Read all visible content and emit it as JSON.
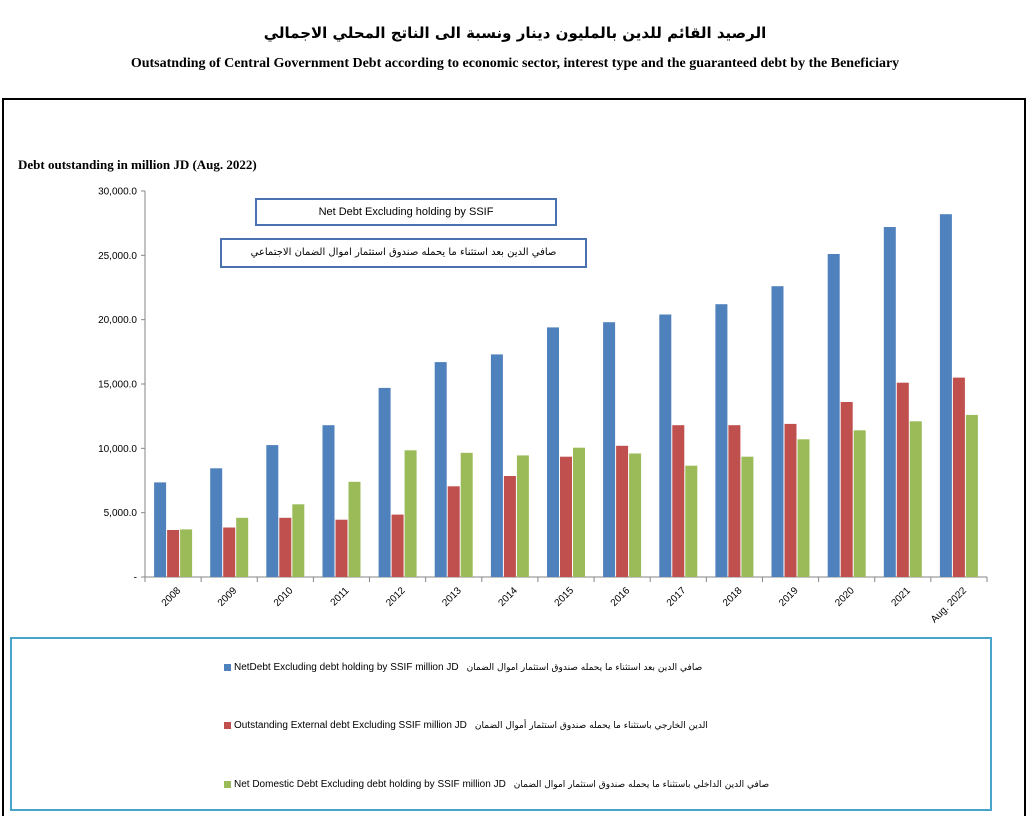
{
  "title_ar": "الرصيد القائم للدين بالمليون دينار ونسبة الى الناتج المحلي الاجمالي",
  "title_en": "Outsatnding of Central Government Debt according to economic sector, interest type and the guaranteed debt by the Beneficiary",
  "chart_heading": "Debt outstanding in million JD (Aug. 2022)",
  "annotation_en": "Net Debt Excluding holding by SSIF",
  "annotation_ar": "صافي الدين بعد استثناء ما يحمله صندوق استثمار اموال الضمان الاجتماعي",
  "chart_data": {
    "type": "bar",
    "categories": [
      "2008",
      "2009",
      "2010",
      "2011",
      "2012",
      "2013",
      "2014",
      "2015",
      "2016",
      "2017",
      "2018",
      "2019",
      "2020",
      "2021",
      "Aug. 2022"
    ],
    "ylim": [
      0,
      30000
    ],
    "yticks": [
      0,
      5000,
      10000,
      15000,
      20000,
      25000,
      30000
    ],
    "ytick_labels": [
      "-",
      "5,000.0",
      "10,000.0",
      "15,000.0",
      "20,000.0",
      "25,000.0",
      "30,000.0"
    ],
    "grid": false,
    "legend_position": "bottom",
    "series": [
      {
        "name": "NetDebt Excluding debt holding by SSIF million JD",
        "name_ar": "صافي الدين بعد استثناء ما يحمله صندوق استثمار اموال الضمان",
        "color": "#4f81bd",
        "values": [
          7350,
          8450,
          10250,
          11800,
          14700,
          16700,
          17300,
          19400,
          19800,
          20400,
          21200,
          22600,
          25100,
          27200,
          28200
        ]
      },
      {
        "name": "Outstanding External debt Excluding SSIF million JD",
        "name_ar": "الدين الخارجي باستثناء ما يحمله صندوق استثمار أموال الضمان",
        "color": "#c0504d",
        "values": [
          3650,
          3850,
          4600,
          4450,
          4850,
          7050,
          7850,
          9350,
          10200,
          11800,
          11800,
          11900,
          13600,
          15100,
          15500
        ]
      },
      {
        "name": "Net Domestic Debt Excluding debt holding by SSIF million JD",
        "name_ar": "صافي الدين الداخلي باستثناء ما يحمله صندوق استثمار اموال الضمان",
        "color": "#9bbb59",
        "values": [
          3700,
          4600,
          5650,
          7400,
          9850,
          9650,
          9450,
          10050,
          9600,
          8650,
          9350,
          10700,
          11400,
          12100,
          12600
        ]
      }
    ]
  }
}
